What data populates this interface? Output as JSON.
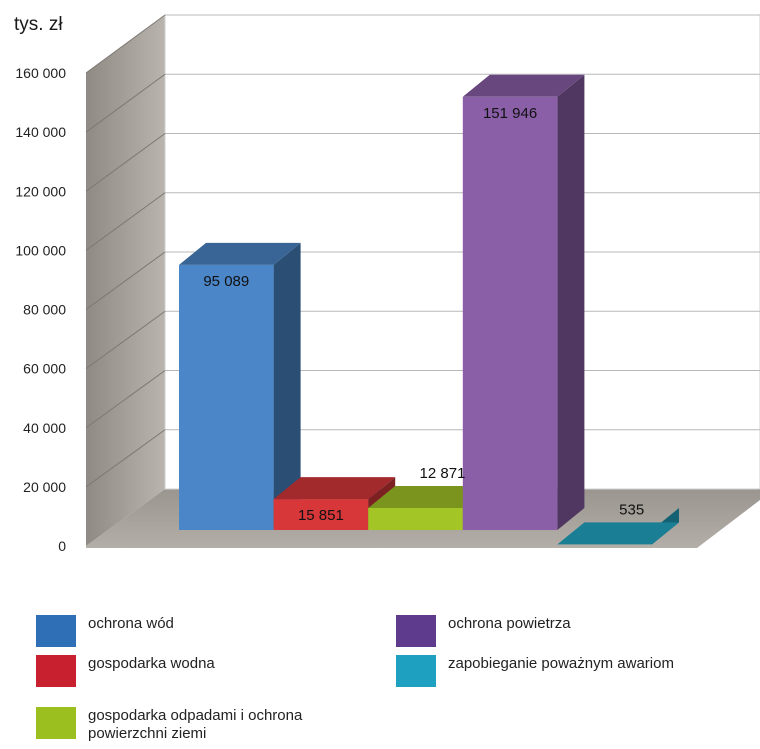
{
  "chart_data": {
    "type": "bar",
    "ylabel": "tys. zł",
    "ylim": [
      0,
      160000
    ],
    "yticks": [
      "0",
      "20 000",
      "40 000",
      "60 000",
      "80 000",
      "100 000",
      "120 000",
      "140 000",
      "160 000"
    ],
    "grid": true,
    "three_d": true,
    "categories": [
      "ochrona wód",
      "gospodarka wodna",
      "gospodarka odpadami i ochrona powierzchni ziemi",
      "ochrona powietrza",
      "zapobieganie poważnym awariom"
    ],
    "values": [
      95089,
      15851,
      12871,
      151946,
      535
    ],
    "data_labels": [
      "95 089",
      "15 851",
      "12 871",
      "151 946",
      "535"
    ],
    "colors": [
      "#4a86c8",
      "#d8373a",
      "#a4c526",
      "#8a5fa8",
      "#23a8c6"
    ],
    "legend_position": "bottom"
  },
  "legend": [
    {
      "label": "ochrona wód",
      "color": "#2e6fb6"
    },
    {
      "label": "gospodarka wodna",
      "color": "#c8202e"
    },
    {
      "label": "gospodarka odpadami i ochrona powierzchni ziemi",
      "color": "#9bbf1f"
    },
    {
      "label": "ochrona powietrza",
      "color": "#5e3b8c"
    },
    {
      "label": "zapobieganie poważnym awariom",
      "color": "#1ea0c0"
    }
  ]
}
